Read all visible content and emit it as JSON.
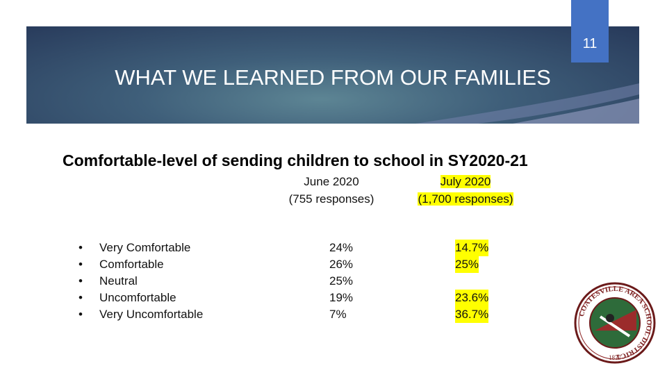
{
  "slide_number": "11",
  "title": "WHAT WE LEARNED FROM OUR FAMILIES",
  "subtitle": "Comfortable-level of sending children to school in SY2020-21",
  "table": {
    "columns": [
      {
        "line1": "June 2020",
        "line2": "(755 responses)",
        "highlight": false
      },
      {
        "line1": "July 2020",
        "line2": "(1,700 responses)",
        "highlight": true
      }
    ],
    "rows": [
      {
        "label": "Very Comfortable",
        "values": [
          "24%",
          "14.7%"
        ]
      },
      {
        "label": "Comfortable",
        "values": [
          "26%",
          "25%"
        ]
      },
      {
        "label": "Neutral",
        "values": [
          "25%",
          null
        ]
      },
      {
        "label": "Uncomfortable",
        "values": [
          "19%",
          "23.6%"
        ]
      },
      {
        "label": "Very Uncomfortable",
        "values": [
          "7%",
          "36.7%"
        ]
      }
    ]
  },
  "logo": {
    "name": "COATESVILLE AREA SCHOOL DISTRICT",
    "year": "1877"
  }
}
